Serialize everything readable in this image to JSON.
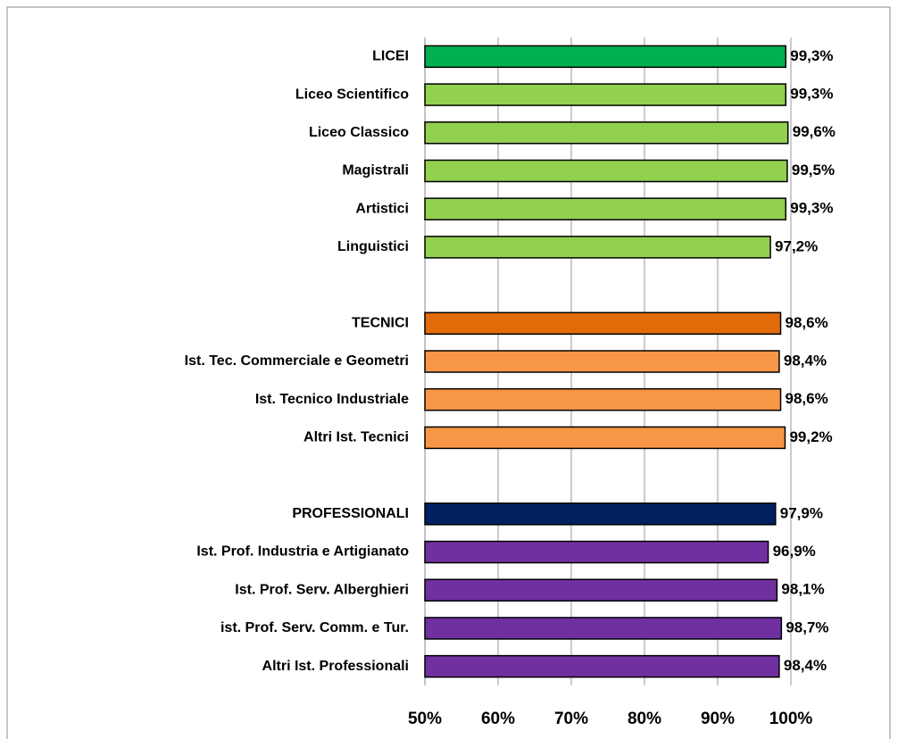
{
  "chart_data": {
    "type": "bar",
    "orientation": "horizontal",
    "categories": [
      "LICEI",
      "Liceo Scientifico",
      "Liceo Classico",
      "Magistrali",
      "Artistici",
      "Linguistici",
      null,
      "TECNICI",
      "Ist. Tec. Commerciale e Geometri",
      "Ist. Tecnico Industriale",
      "Altri Ist. Tecnici",
      null,
      "PROFESSIONALI",
      "Ist. Prof. Industria e Artigianato",
      "Ist. Prof. Serv. Alberghieri ",
      "ist. Prof. Serv. Comm. e Tur.",
      "Altri Ist. Professionali"
    ],
    "values": [
      99.3,
      99.3,
      99.6,
      99.5,
      99.3,
      97.2,
      null,
      98.6,
      98.4,
      98.6,
      99.2,
      null,
      97.9,
      96.9,
      98.1,
      98.7,
      98.4
    ],
    "value_labels": [
      "99,3%",
      "99,3%",
      "99,6%",
      "99,5%",
      "99,3%",
      "97,2%",
      null,
      "98,6%",
      "98,4%",
      "98,6%",
      "99,2%",
      null,
      "97,9%",
      "96,9%",
      "98,1%",
      "98,7%",
      "98,4%"
    ],
    "colors": [
      "#00b050",
      "#92d050",
      "#92d050",
      "#92d050",
      "#92d050",
      "#92d050",
      null,
      "#e36c0a",
      "#f79646",
      "#f79646",
      "#f79646",
      null,
      "#002060",
      "#7030a0",
      "#7030a0",
      "#7030a0",
      "#7030a0"
    ],
    "xlim": [
      50,
      100
    ],
    "xticks": [
      {
        "value": 50,
        "label": "50%"
      },
      {
        "value": 60,
        "label": "60%"
      },
      {
        "value": 70,
        "label": "70%"
      },
      {
        "value": 80,
        "label": "80%"
      },
      {
        "value": 90,
        "label": "90%"
      },
      {
        "value": 100,
        "label": "100%"
      }
    ],
    "grid": true
  }
}
